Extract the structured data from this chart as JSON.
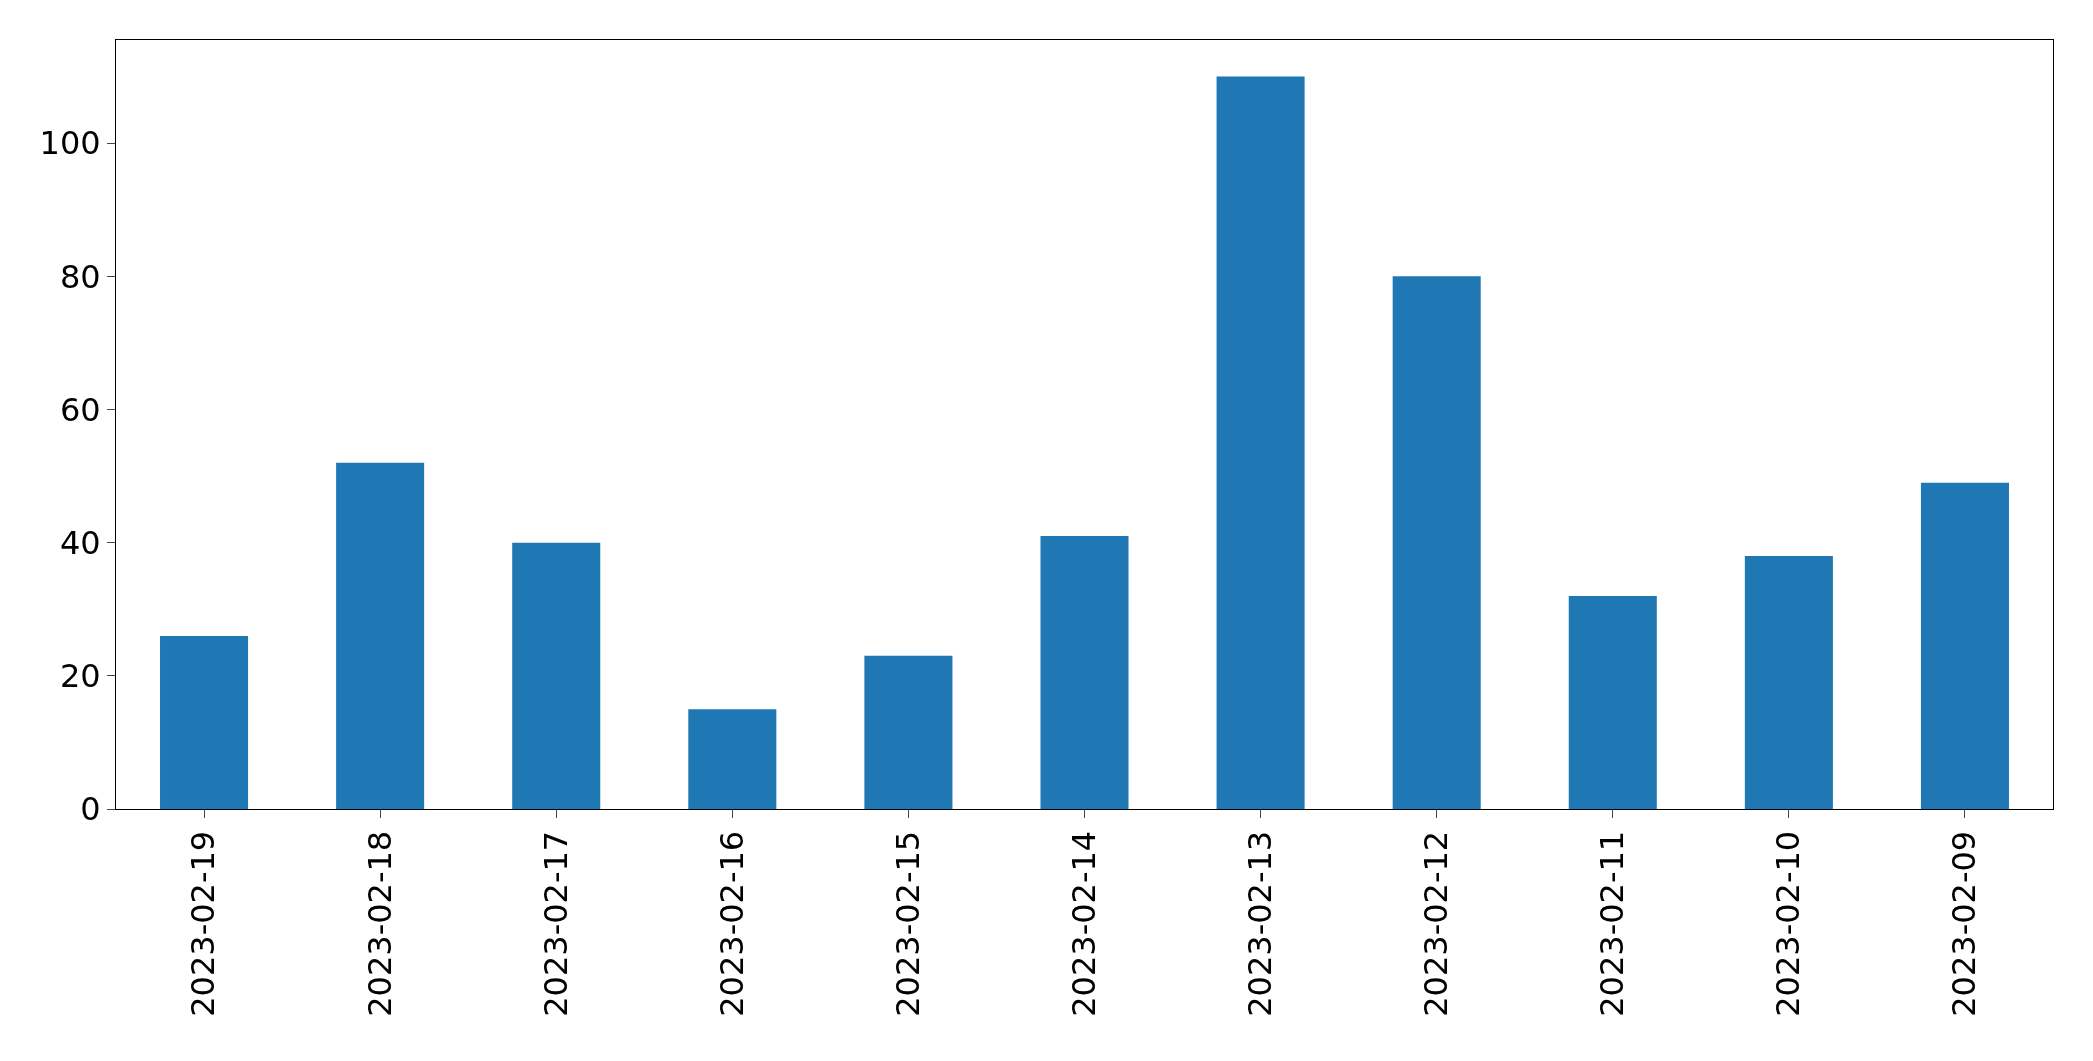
{
  "chart_data": {
    "type": "bar",
    "categories": [
      "2023-02-19",
      "2023-02-18",
      "2023-02-17",
      "2023-02-16",
      "2023-02-15",
      "2023-02-14",
      "2023-02-13",
      "2023-02-12",
      "2023-02-11",
      "2023-02-10",
      "2023-02-09"
    ],
    "values": [
      26,
      52,
      40,
      15,
      23,
      41,
      110,
      80,
      32,
      38,
      49
    ],
    "color": "#1f77b4",
    "ylim": [
      0,
      115.5
    ],
    "yticks": [
      0,
      20,
      40,
      60,
      80,
      100
    ]
  }
}
